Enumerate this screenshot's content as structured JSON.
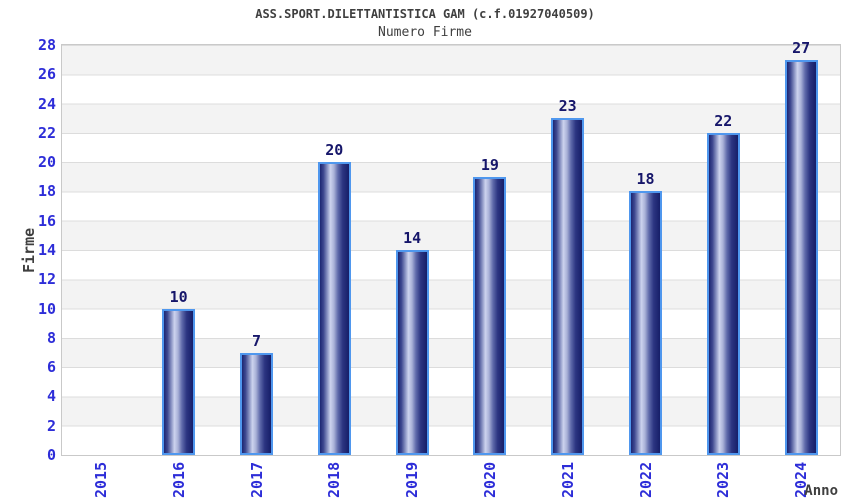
{
  "title": "ASS.SPORT.DILETTANTISTICA GAM (c.f.01927040509)",
  "subtitle": "Numero Firme",
  "chart_data": {
    "type": "bar",
    "title": "ASS.SPORT.DILETTANTISTICA GAM (c.f.01927040509)",
    "subtitle": "Numero Firme",
    "categories": [
      "2015",
      "2016",
      "2017",
      "2018",
      "2019",
      "2020",
      "2021",
      "2022",
      "2023",
      "2024"
    ],
    "values": [
      0,
      10,
      7,
      20,
      14,
      19,
      23,
      18,
      22,
      27
    ],
    "xlabel": "Anno",
    "ylabel": "Firme",
    "ylim": [
      0,
      28
    ],
    "ytick_step": 2,
    "yticks": [
      0,
      2,
      4,
      6,
      8,
      10,
      12,
      14,
      16,
      18,
      20,
      22,
      24,
      26,
      28
    ],
    "grid": true,
    "banded_background": true,
    "legend": "none",
    "bar_value_labels_shown": true,
    "colors": {
      "background": "#ffffff",
      "text": "#3f3f3f",
      "tick_label": "#2d2dd8",
      "value_label": "#16166a",
      "band_gray": "#f3f3f3",
      "band_white": "#ffffff",
      "gridline": "#dcdcdc",
      "plot_border": "#c9c9c9",
      "bar_border": "#4f97ee",
      "bar_dark": "#161e68",
      "bar_light": "#cdd3ee"
    }
  }
}
